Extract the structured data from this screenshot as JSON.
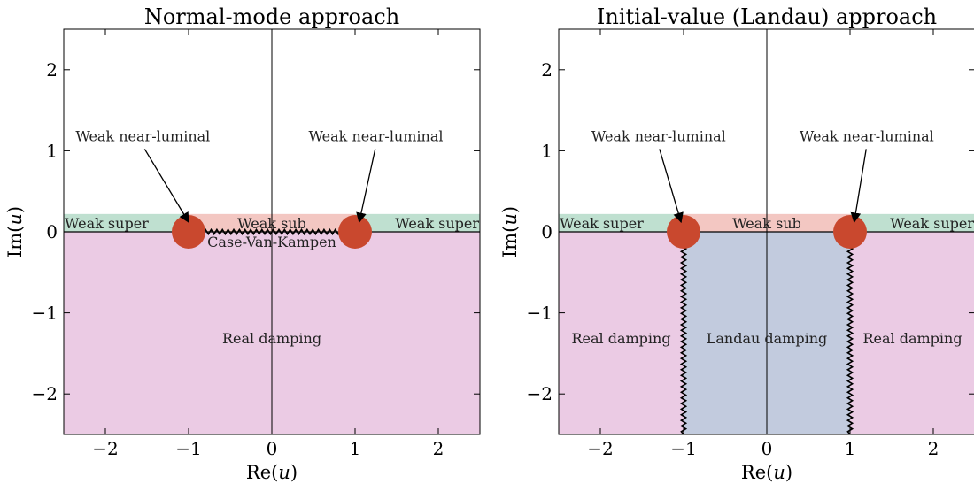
{
  "colors": {
    "weak_super": "#bfe0d0",
    "weak_sub": "#f3c7c2",
    "real_damping": "#ebcbe4",
    "landau_damping": "#c2cbde",
    "pole": "#c9482e",
    "branch": "#000000",
    "axis": "#000000"
  },
  "chart_data": [
    {
      "type": "complex-plane",
      "title": "Normal-mode approach",
      "xlabel": "Re(u)",
      "ylabel": "Im(u)",
      "xlim": [
        -2.5,
        2.5
      ],
      "ylim": [
        -2.5,
        2.5
      ],
      "xticks": [
        -2,
        -1,
        0,
        1,
        2
      ],
      "yticks": [
        -2,
        -1,
        0,
        1,
        2
      ],
      "xtick_labels": [
        "−2",
        "−1",
        "0",
        "1",
        "2"
      ],
      "ytick_labels": [
        "−2",
        "−1",
        "0",
        "1",
        "2"
      ],
      "band_top": 0.22,
      "regions": [
        {
          "name": "Weak super",
          "kind": "weak_super",
          "x": [
            -2.5,
            -1
          ],
          "y": [
            0,
            0.22
          ],
          "label": "Weak super",
          "label_at": [
            -2.5,
            0.1
          ],
          "anchor": "start"
        },
        {
          "name": "Weak sub",
          "kind": "weak_sub",
          "x": [
            -1,
            1
          ],
          "y": [
            0,
            0.22
          ],
          "label": "Weak sub",
          "label_at": [
            0,
            0.1
          ],
          "anchor": "middle"
        },
        {
          "name": "Weak super",
          "kind": "weak_super",
          "x": [
            1,
            2.5
          ],
          "y": [
            0,
            0.22
          ],
          "label": "Weak super",
          "label_at": [
            2.5,
            0.1
          ],
          "anchor": "end"
        },
        {
          "name": "Real damping",
          "kind": "real_damping",
          "x": [
            -2.5,
            2.5
          ],
          "y": [
            -2.5,
            0
          ],
          "label": "Real damping",
          "label_at": [
            0,
            -1.32
          ],
          "anchor": "middle"
        }
      ],
      "poles": [
        {
          "re": -1,
          "im": 0
        },
        {
          "re": 1,
          "im": 0
        }
      ],
      "branch_cuts": [
        {
          "from": [
            -1,
            0
          ],
          "to": [
            1,
            0
          ],
          "label": "Case-Van-Kampen",
          "label_at": [
            0,
            -0.13
          ]
        }
      ],
      "annotations": [
        {
          "text": "Weak near-luminal",
          "text_at": [
            -1.55,
            1.12
          ],
          "target": [
            -1.0,
            0.12
          ]
        },
        {
          "text": "Weak near-luminal",
          "text_at": [
            1.25,
            1.12
          ],
          "target": [
            1.05,
            0.12
          ]
        }
      ]
    },
    {
      "type": "complex-plane",
      "title": "Initial-value (Landau) approach",
      "xlabel": "Re(u)",
      "ylabel": "Im(u)",
      "xlim": [
        -2.5,
        2.5
      ],
      "ylim": [
        -2.5,
        2.5
      ],
      "xticks": [
        -2,
        -1,
        0,
        1,
        2
      ],
      "yticks": [
        -2,
        -1,
        0,
        1,
        2
      ],
      "xtick_labels": [
        "−2",
        "−1",
        "0",
        "1",
        "2"
      ],
      "ytick_labels": [
        "−2",
        "−1",
        "0",
        "1",
        "2"
      ],
      "band_top": 0.22,
      "regions": [
        {
          "name": "Weak super",
          "kind": "weak_super",
          "x": [
            -2.5,
            -1
          ],
          "y": [
            0,
            0.22
          ],
          "label": "Weak super",
          "label_at": [
            -2.5,
            0.1
          ],
          "anchor": "start"
        },
        {
          "name": "Weak sub",
          "kind": "weak_sub",
          "x": [
            -1,
            1
          ],
          "y": [
            0,
            0.22
          ],
          "label": "Weak sub",
          "label_at": [
            0,
            0.1
          ],
          "anchor": "middle"
        },
        {
          "name": "Weak super",
          "kind": "weak_super",
          "x": [
            1,
            2.5
          ],
          "y": [
            0,
            0.22
          ],
          "label": "Weak super",
          "label_at": [
            2.5,
            0.1
          ],
          "anchor": "end"
        },
        {
          "name": "Real damping",
          "kind": "real_damping",
          "x": [
            -2.5,
            -1
          ],
          "y": [
            -2.5,
            0
          ],
          "label": "Real damping",
          "label_at": [
            -1.75,
            -1.32
          ],
          "anchor": "middle"
        },
        {
          "name": "Landau damping",
          "kind": "landau_damping",
          "x": [
            -1,
            1
          ],
          "y": [
            -2.5,
            0
          ],
          "label": "Landau damping",
          "label_at": [
            0,
            -1.32
          ],
          "anchor": "middle"
        },
        {
          "name": "Real damping",
          "kind": "real_damping",
          "x": [
            1,
            2.5
          ],
          "y": [
            -2.5,
            0
          ],
          "label": "Real damping",
          "label_at": [
            1.75,
            -1.32
          ],
          "anchor": "middle"
        }
      ],
      "poles": [
        {
          "re": -1,
          "im": 0
        },
        {
          "re": 1,
          "im": 0
        }
      ],
      "branch_cuts": [
        {
          "from": [
            -1,
            0
          ],
          "to": [
            -1,
            -2.5
          ]
        },
        {
          "from": [
            1,
            0
          ],
          "to": [
            1,
            -2.5
          ]
        }
      ],
      "annotations": [
        {
          "text": "Weak near-luminal",
          "text_at": [
            -1.3,
            1.12
          ],
          "target": [
            -1.03,
            0.12
          ]
        },
        {
          "text": "Weak near-luminal",
          "text_at": [
            1.2,
            1.12
          ],
          "target": [
            1.05,
            0.12
          ]
        }
      ]
    }
  ]
}
